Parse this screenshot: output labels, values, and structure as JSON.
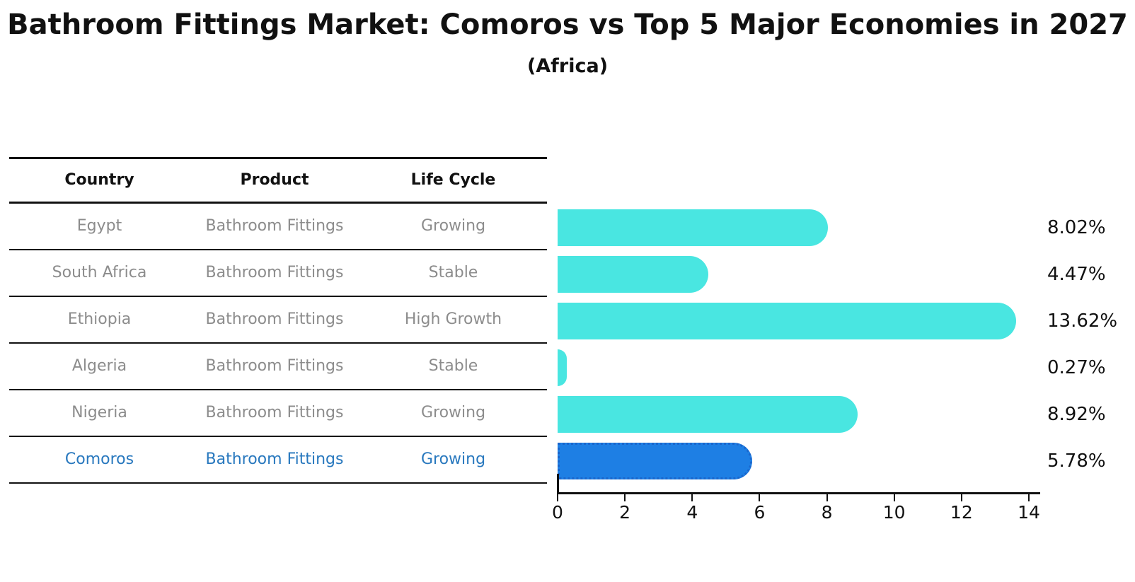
{
  "title": "Bathroom Fittings Market: Comoros vs Top 5 Major Economies in 2027",
  "subtitle": "(Africa)",
  "table": {
    "headers": {
      "country": "Country",
      "product": "Product",
      "life_cycle": "Life Cycle"
    },
    "rows": [
      {
        "country": "Egypt",
        "product": "Bathroom Fittings",
        "life_cycle": "Growing"
      },
      {
        "country": "South Africa",
        "product": "Bathroom Fittings",
        "life_cycle": "Stable"
      },
      {
        "country": "Ethiopia",
        "product": "Bathroom Fittings",
        "life_cycle": "High Growth"
      },
      {
        "country": "Algeria",
        "product": "Bathroom Fittings",
        "life_cycle": "Stable"
      },
      {
        "country": "Nigeria",
        "product": "Bathroom Fittings",
        "life_cycle": "Growing"
      },
      {
        "country": "Comoros",
        "product": "Bathroom Fittings",
        "life_cycle": "Growing"
      }
    ]
  },
  "chart_data": {
    "type": "bar",
    "orientation": "horizontal",
    "title": "Bathroom Fittings Market: Comoros vs Top 5 Major Economies in 2027 (Africa)",
    "categories": [
      "Egypt",
      "South Africa",
      "Ethiopia",
      "Algeria",
      "Nigeria",
      "Comoros"
    ],
    "values": [
      8.02,
      4.47,
      13.62,
      0.27,
      8.92,
      5.78
    ],
    "value_labels": [
      "8.02%",
      "4.47%",
      "13.62%",
      "0.27%",
      "8.92%",
      "5.78%"
    ],
    "highlight_index": 5,
    "xticks": [
      "0",
      "2",
      "4",
      "6",
      "8",
      "10",
      "12",
      "14"
    ],
    "xtick_values": [
      0,
      2,
      4,
      6,
      8,
      10,
      12,
      14
    ],
    "xlim": [
      0,
      14.35
    ],
    "grid": "off",
    "legend": "none",
    "bar_color": "#49e6e1",
    "highlight_color": "#1e7fe4",
    "highlight_border_color": "#1a66cc"
  },
  "colors": {
    "text": "#111111",
    "muted_text": "#8c8c8c",
    "highlight_text": "#2878be",
    "line": "#111111"
  }
}
